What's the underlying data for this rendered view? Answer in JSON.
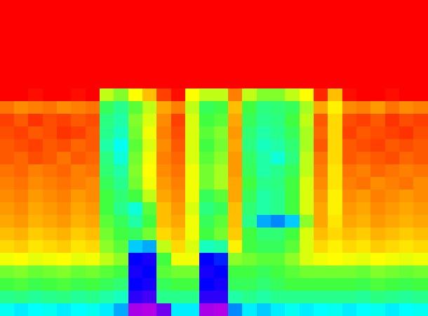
{
  "chart_data": {
    "type": "heatmap",
    "tick_labels": false,
    "zlim": [
      0,
      100
    ],
    "cells": [
      [
        0,
        0,
        0,
        0,
        0,
        0,
        0,
        0,
        0,
        0,
        0,
        0,
        0,
        0,
        0,
        0,
        0,
        0,
        0,
        0,
        0,
        0,
        0,
        0,
        0,
        0,
        0,
        0,
        0,
        0
      ],
      [
        0,
        0,
        0,
        0,
        0,
        0,
        0,
        0,
        0,
        0,
        0,
        0,
        0,
        0,
        0,
        0,
        0,
        0,
        0,
        0,
        0,
        0,
        0,
        0,
        0,
        0,
        0,
        0,
        0,
        0
      ],
      [
        0,
        0,
        0,
        0,
        0,
        0,
        0,
        0,
        0,
        0,
        0,
        0,
        0,
        0,
        0,
        0,
        0,
        0,
        0,
        0,
        0,
        0,
        0,
        0,
        0,
        0,
        0,
        0,
        0,
        0
      ],
      [
        0,
        0,
        0,
        0,
        0,
        0,
        0,
        0,
        0,
        0,
        0,
        0,
        0,
        0,
        0,
        0,
        0,
        0,
        0,
        0,
        0,
        0,
        0,
        0,
        0,
        0,
        0,
        0,
        0,
        0
      ],
      [
        0,
        0,
        0,
        0,
        0,
        0,
        0,
        0,
        0,
        0,
        0,
        0,
        0,
        0,
        0,
        0,
        0,
        0,
        0,
        0,
        0,
        0,
        0,
        0,
        0,
        0,
        0,
        0,
        0,
        0
      ],
      [
        0,
        0,
        0,
        0,
        0,
        0,
        0,
        0,
        0,
        0,
        0,
        0,
        0,
        0,
        0,
        0,
        0,
        0,
        0,
        0,
        0,
        0,
        0,
        0,
        0,
        0,
        0,
        0,
        0,
        0
      ],
      [
        0,
        0,
        0,
        0,
        0,
        0,
        0,
        0,
        0,
        0,
        0,
        0,
        0,
        0,
        0,
        0,
        0,
        0,
        0,
        0,
        0,
        0,
        0,
        0,
        0,
        0,
        0,
        0,
        0,
        0
      ],
      [
        15,
        14,
        16,
        15,
        13,
        16,
        15,
        40,
        45,
        35,
        30,
        20,
        16,
        35,
        40,
        40,
        25,
        40,
        45,
        45,
        40,
        35,
        18,
        30,
        16,
        15,
        14,
        16,
        15,
        14
      ],
      [
        24,
        26,
        25,
        24,
        26,
        25,
        24,
        52,
        56,
        48,
        40,
        28,
        25,
        40,
        52,
        50,
        30,
        50,
        55,
        54,
        52,
        42,
        28,
        34,
        26,
        25,
        27,
        24,
        26,
        25
      ],
      [
        20,
        22,
        19,
        21,
        20,
        22,
        21,
        55,
        58,
        45,
        38,
        26,
        20,
        38,
        50,
        48,
        28,
        52,
        56,
        55,
        50,
        40,
        22,
        32,
        21,
        20,
        22,
        19,
        21,
        20
      ],
      [
        21,
        20,
        22,
        21,
        19,
        20,
        22,
        56,
        60,
        46,
        36,
        25,
        21,
        38,
        48,
        45,
        27,
        54,
        58,
        56,
        52,
        42,
        23,
        32,
        20,
        22,
        21,
        20,
        19,
        21
      ],
      [
        22,
        21,
        20,
        22,
        21,
        23,
        22,
        58,
        64,
        48,
        38,
        26,
        22,
        38,
        50,
        46,
        28,
        55,
        60,
        58,
        54,
        42,
        22,
        32,
        22,
        21,
        20,
        22,
        21,
        22
      ],
      [
        22,
        23,
        21,
        22,
        24,
        22,
        23,
        55,
        62,
        46,
        36,
        25,
        23,
        38,
        48,
        44,
        27,
        53,
        58,
        62,
        55,
        40,
        24,
        32,
        22,
        23,
        22,
        21,
        23,
        22
      ],
      [
        24,
        23,
        25,
        24,
        23,
        25,
        24,
        54,
        58,
        45,
        35,
        26,
        24,
        36,
        46,
        42,
        27,
        52,
        58,
        56,
        52,
        40,
        25,
        33,
        24,
        25,
        23,
        24,
        25,
        24
      ],
      [
        25,
        24,
        26,
        25,
        24,
        25,
        26,
        52,
        56,
        46,
        36,
        27,
        25,
        36,
        46,
        42,
        28,
        50,
        56,
        55,
        50,
        38,
        26,
        33,
        25,
        24,
        26,
        25,
        24,
        26
      ],
      [
        26,
        25,
        27,
        26,
        25,
        27,
        26,
        50,
        54,
        50,
        40,
        28,
        26,
        36,
        52,
        48,
        28,
        52,
        58,
        56,
        50,
        38,
        27,
        34,
        26,
        27,
        25,
        26,
        27,
        26
      ],
      [
        27,
        26,
        28,
        27,
        26,
        28,
        27,
        50,
        56,
        62,
        48,
        30,
        27,
        38,
        55,
        52,
        30,
        54,
        58,
        56,
        50,
        38,
        28,
        34,
        27,
        28,
        26,
        27,
        28,
        27
      ],
      [
        28,
        27,
        29,
        28,
        27,
        29,
        28,
        48,
        52,
        58,
        50,
        30,
        28,
        36,
        52,
        48,
        30,
        56,
        70,
        72,
        68,
        44,
        28,
        33,
        28,
        29,
        27,
        28,
        29,
        28
      ],
      [
        30,
        29,
        31,
        30,
        29,
        31,
        30,
        46,
        50,
        52,
        46,
        32,
        30,
        36,
        50,
        46,
        31,
        50,
        54,
        54,
        50,
        38,
        30,
        32,
        30,
        31,
        29,
        30,
        31,
        30
      ],
      [
        32,
        31,
        33,
        32,
        31,
        33,
        32,
        44,
        48,
        68,
        70,
        40,
        32,
        38,
        60,
        58,
        34,
        50,
        52,
        52,
        48,
        38,
        32,
        34,
        32,
        33,
        31,
        32,
        33,
        32
      ],
      [
        36,
        35,
        37,
        36,
        35,
        37,
        36,
        40,
        44,
        80,
        82,
        50,
        36,
        36,
        80,
        78,
        44,
        46,
        48,
        48,
        44,
        38,
        36,
        35,
        36,
        37,
        35,
        36,
        37,
        36
      ],
      [
        46,
        45,
        47,
        46,
        45,
        47,
        46,
        48,
        50,
        82,
        80,
        48,
        46,
        46,
        82,
        80,
        50,
        50,
        52,
        50,
        48,
        46,
        46,
        46,
        46,
        47,
        45,
        46,
        47,
        46
      ],
      [
        50,
        49,
        51,
        50,
        49,
        51,
        50,
        52,
        54,
        80,
        82,
        52,
        50,
        50,
        80,
        82,
        52,
        52,
        54,
        52,
        50,
        50,
        50,
        50,
        50,
        51,
        49,
        50,
        51,
        50
      ],
      [
        56,
        55,
        57,
        56,
        55,
        57,
        56,
        58,
        60,
        84,
        86,
        56,
        56,
        56,
        84,
        84,
        58,
        56,
        58,
        56,
        56,
        56,
        56,
        56,
        56,
        57,
        55,
        56,
        57,
        56
      ],
      [
        64,
        66,
        65,
        64,
        66,
        65,
        64,
        66,
        70,
        95,
        96,
        90,
        66,
        66,
        95,
        96,
        72,
        66,
        68,
        66,
        64,
        66,
        65,
        64,
        66,
        65,
        64,
        66,
        65,
        64
      ]
    ]
  }
}
